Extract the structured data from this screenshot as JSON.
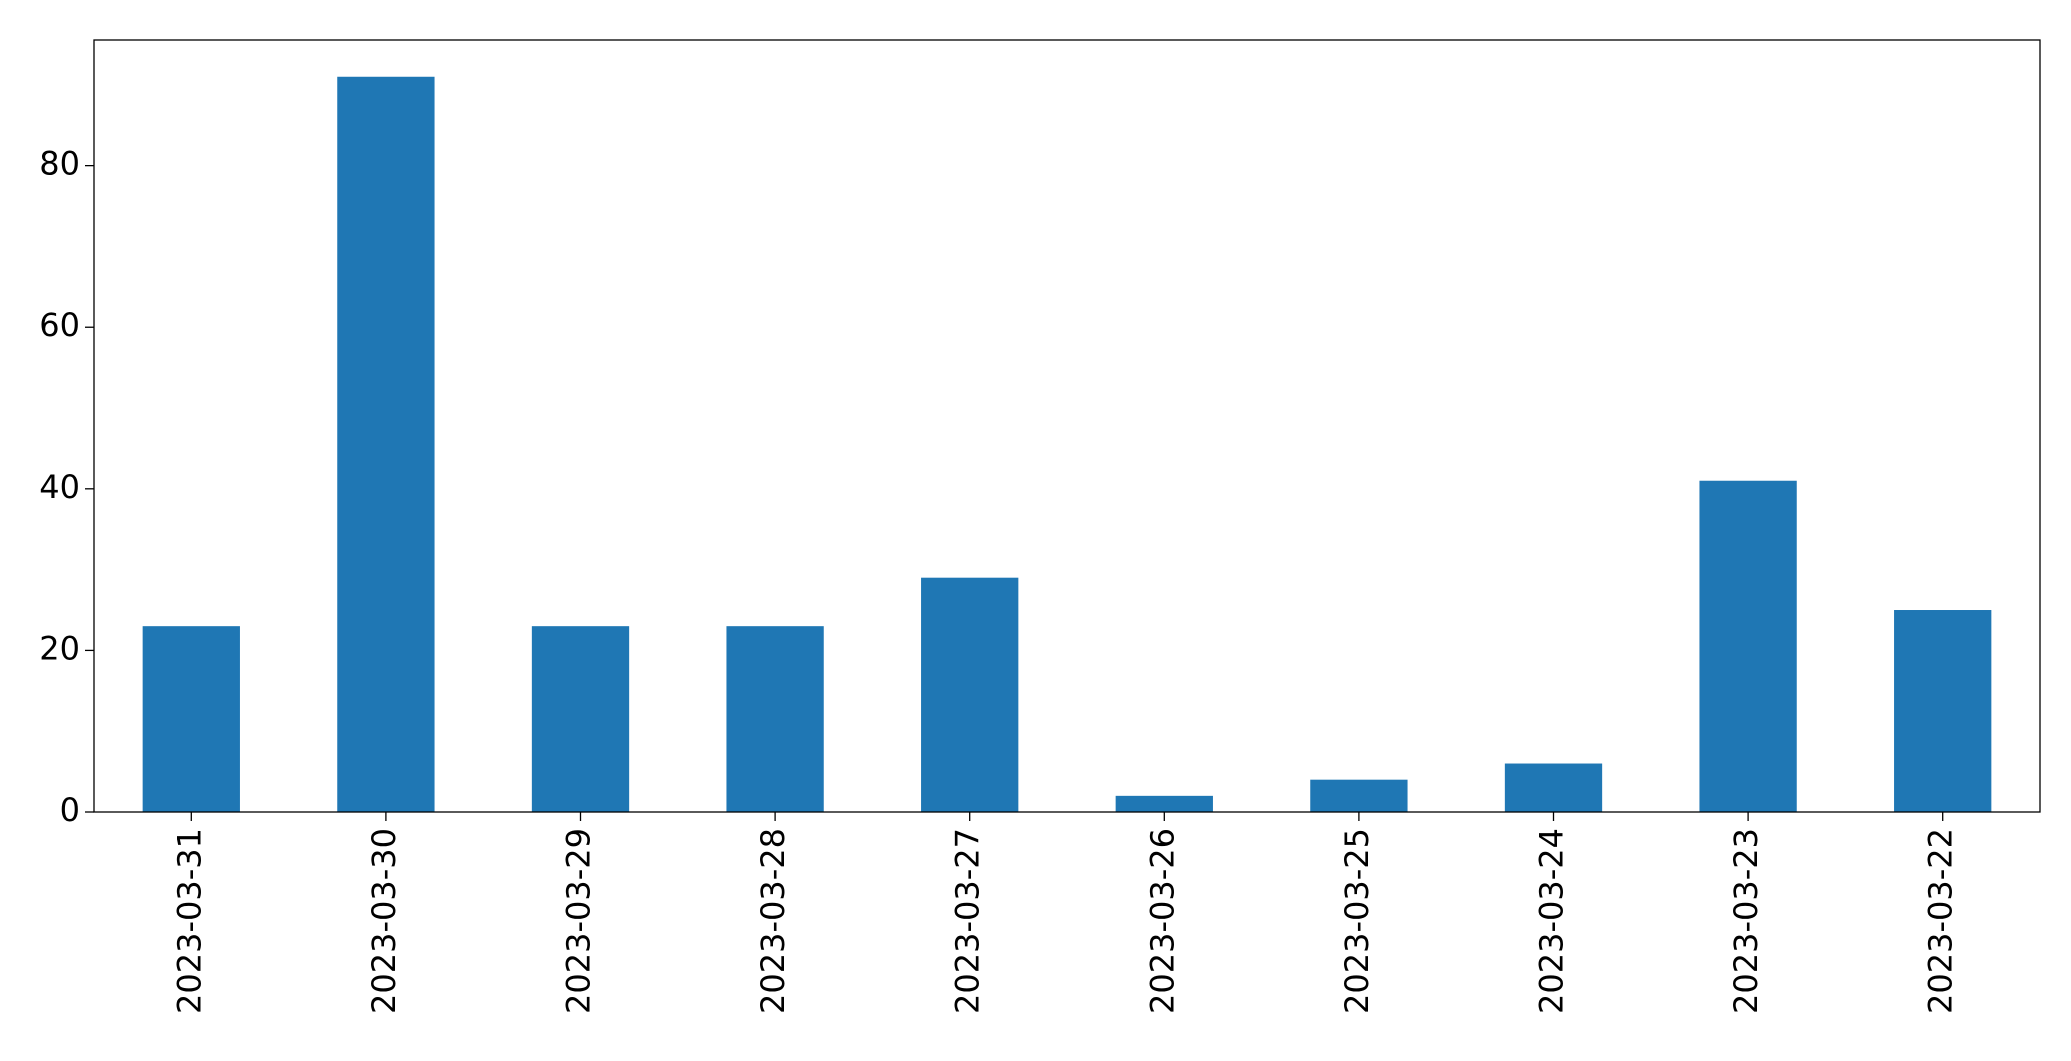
{
  "chart_data": {
    "type": "bar",
    "categories": [
      "2023-03-31",
      "2023-03-30",
      "2023-03-29",
      "2023-03-28",
      "2023-03-27",
      "2023-03-26",
      "2023-03-25",
      "2023-03-24",
      "2023-03-23",
      "2023-03-22"
    ],
    "values": [
      23,
      91,
      23,
      23,
      29,
      2,
      4,
      6,
      41,
      25
    ],
    "color": "#1f77b4",
    "ylim": [
      0,
      95.55
    ],
    "yticks": [
      0,
      20,
      40,
      60,
      80
    ],
    "grid": false
  }
}
